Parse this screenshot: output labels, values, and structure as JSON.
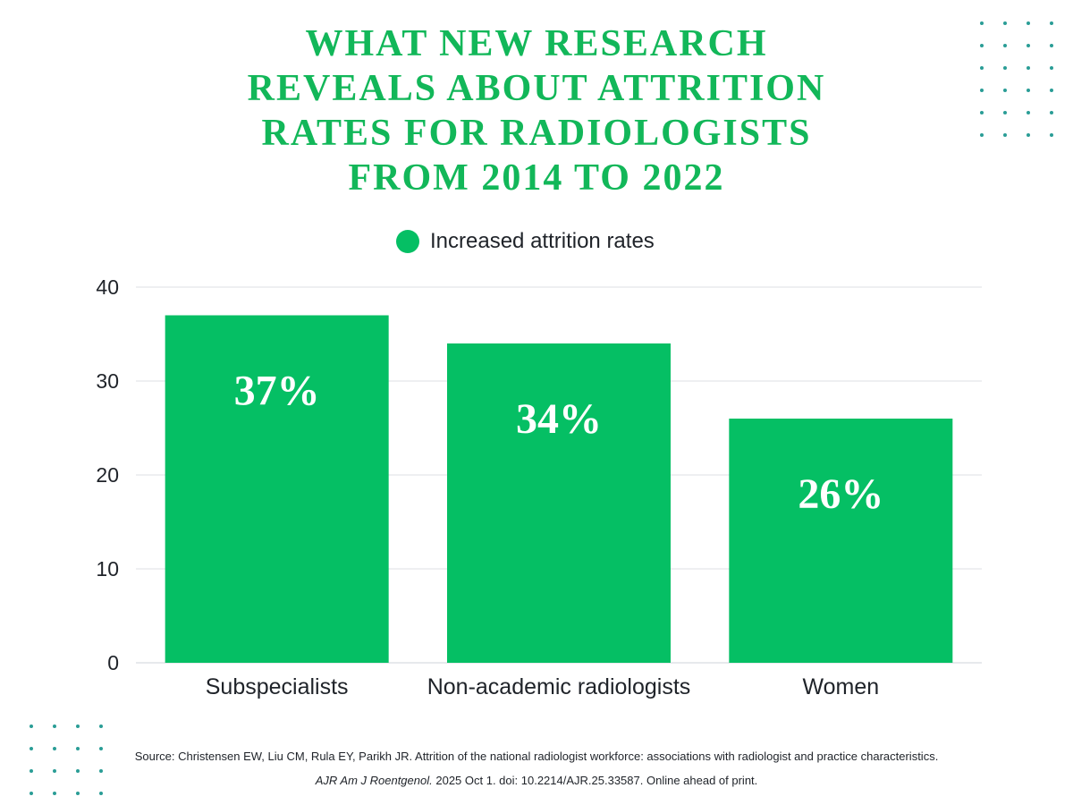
{
  "title_lines": [
    "WHAT NEW RESEARCH",
    "REVEALS ABOUT ATTRITION",
    "RATES FOR RADIOLOGISTS",
    "FROM 2014 TO 2022"
  ],
  "colors": {
    "title": "#12b759",
    "bar": "#05bf64",
    "dots": "#2a9d96"
  },
  "source": {
    "prefix": "Source:  Christensen EW, Liu CM, Rula EY, Parikh JR. Attrition of the national radiologist workforce: associations with radiologist and practice characteristics.",
    "journal": "AJR Am J Roentgenol.",
    "suffix": "2025 Oct 1. doi: 10.2214/AJR.25.33587. Online ahead of print."
  },
  "chart_data": {
    "type": "bar",
    "title": "WHAT NEW RESEARCH REVEALS ABOUT ATTRITION RATES FOR RADIOLOGISTS FROM 2014 TO 2022",
    "categories": [
      "Subspecialists",
      "Non-academic radiologists",
      "Women"
    ],
    "series": [
      {
        "name": "Increased attrition rates",
        "values": [
          37,
          34,
          26
        ],
        "data_labels": [
          "37%",
          "34%",
          "26%"
        ]
      }
    ],
    "yticks": [
      0,
      10,
      20,
      30,
      40
    ],
    "ylim": [
      0,
      40
    ],
    "xlabel": "",
    "ylabel": "",
    "grid": true,
    "legend": "top-center"
  }
}
